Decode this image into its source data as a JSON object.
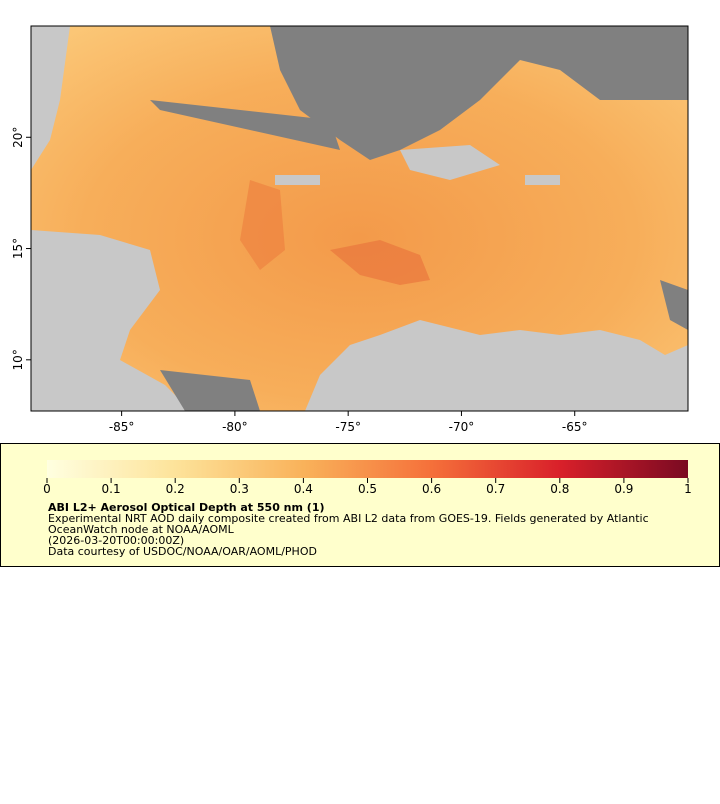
{
  "map": {
    "xlim": [
      -89,
      -60
    ],
    "ylim": [
      7.7,
      25
    ],
    "xticks": [
      {
        "value": -85,
        "label": "-85°"
      },
      {
        "value": -80,
        "label": "-80°"
      },
      {
        "value": -75,
        "label": "-75°"
      },
      {
        "value": -70,
        "label": "-70°"
      },
      {
        "value": -65,
        "label": "-65°"
      }
    ],
    "yticks": [
      {
        "value": 10,
        "label": "10°"
      },
      {
        "value": 15,
        "label": "15°"
      },
      {
        "value": 20,
        "label": "20°"
      }
    ]
  },
  "colorbar": {
    "lim": [
      0,
      1
    ],
    "ticks": [
      0,
      0.1,
      0.2,
      0.3,
      0.4,
      0.5,
      0.6,
      0.7,
      0.8,
      0.9,
      1
    ]
  },
  "legend": {
    "title": "ABI L2+ Aerosol Optical Depth at 550 nm (1)",
    "lines": [
      "Experimental NRT AOD daily composite created from ABI L2 data from GOES-19. Fields generated by Atlantic",
      "OceanWatch node at NOAA/AOML",
      "(2026-03-20T00:00:00Z)",
      "Data courtesy of USDOC/NOAA/OAR/AOML/PHOD"
    ]
  }
}
